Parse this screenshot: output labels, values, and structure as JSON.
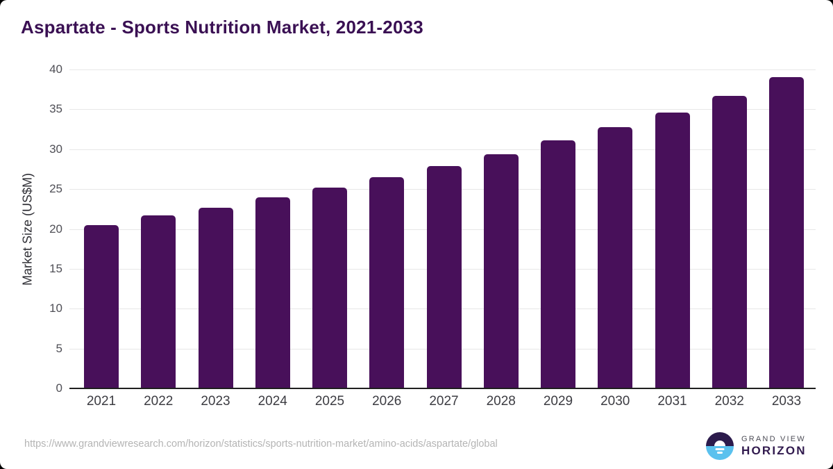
{
  "header": {
    "title": "Aspartate - Sports Nutrition Market, 2021-2033"
  },
  "footer": {
    "source_url": "https://www.grandviewresearch.com/horizon/statistics/sports-nutrition-market/amino-acids/aspartate/global",
    "brand_top": "GRAND VIEW",
    "brand_bottom": "HORIZON"
  },
  "colors": {
    "bar": "#48105a",
    "title": "#3a1053",
    "gridline": "#e7e7e7",
    "axis_line": "#1f1f1f",
    "y_tick_label": "#4f4f56",
    "x_tick_label": "#3c3c42",
    "source_url": "#b4b4b4",
    "logo_dark_half": "#2c1b4c",
    "logo_blue_half": "#5ac1ee"
  },
  "chart_data": {
    "type": "bar",
    "title": "Aspartate - Sports Nutrition Market, 2021-2033",
    "categories": [
      "2021",
      "2022",
      "2023",
      "2024",
      "2025",
      "2026",
      "2027",
      "2028",
      "2029",
      "2030",
      "2031",
      "2032",
      "2033"
    ],
    "values": [
      20.5,
      21.7,
      22.7,
      24.0,
      25.2,
      26.5,
      27.9,
      29.4,
      31.1,
      32.8,
      34.6,
      36.7,
      39.0
    ],
    "xlabel": "",
    "ylabel": "Market Size (US$M)",
    "ylim": [
      0,
      40
    ],
    "ytick_step": 5,
    "grid": "horizontal",
    "legend": "none",
    "bar_color": "#48105a"
  }
}
